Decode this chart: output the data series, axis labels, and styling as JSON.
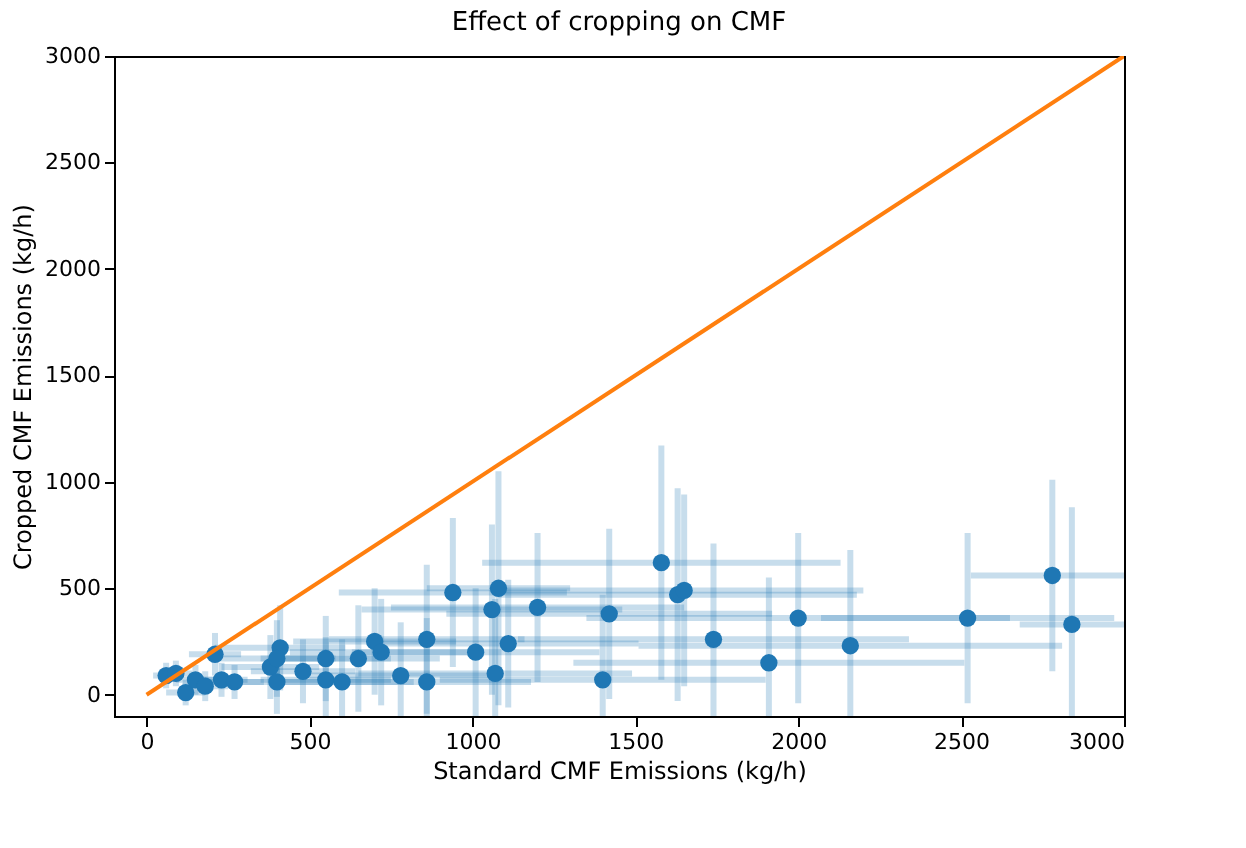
{
  "chart_data": {
    "type": "scatter",
    "title": "Effect of cropping on CMF",
    "xlabel": "Standard CMF Emissions (kg/h)",
    "ylabel": "Cropped CMF Emissions (kg/h)",
    "xlim": [
      -100,
      3000
    ],
    "ylim": [
      -100,
      3000
    ],
    "xticks": [
      0,
      500,
      1000,
      1500,
      2000,
      2500,
      3000
    ],
    "yticks": [
      0,
      500,
      1000,
      1500,
      2000,
      2500,
      3000
    ],
    "series": [
      {
        "color": "#1f77b4",
        "marker": "circle",
        "x": [
          60,
          90,
          120,
          150,
          180,
          210,
          230,
          270,
          380,
          400,
          410,
          400,
          480,
          550,
          550,
          600,
          650,
          700,
          720,
          780,
          860,
          860,
          940,
          1010,
          1080,
          1060,
          1110,
          1070,
          1200,
          1420,
          1400,
          1580,
          1630,
          1650,
          1740,
          1910,
          2000,
          2160,
          2520,
          2780,
          2840
        ],
        "values": [
          90,
          100,
          10,
          70,
          40,
          190,
          70,
          60,
          130,
          60,
          220,
          170,
          110,
          170,
          70,
          60,
          170,
          250,
          200,
          90,
          260,
          60,
          480,
          200,
          500,
          400,
          240,
          100,
          410,
          380,
          70,
          620,
          470,
          490,
          260,
          150,
          360,
          230,
          360,
          560,
          330
        ],
        "xerrors": [
          40,
          50,
          60,
          60,
          70,
          80,
          80,
          90,
          150,
          150,
          200,
          180,
          160,
          200,
          200,
          220,
          250,
          250,
          280,
          280,
          300,
          320,
          350,
          380,
          220,
          400,
          400,
          420,
          450,
          500,
          500,
          550,
          550,
          550,
          600,
          600,
          650,
          650,
          450,
          250,
          160
        ],
        "errors": [
          60,
          60,
          60,
          70,
          70,
          100,
          80,
          80,
          150,
          150,
          200,
          180,
          150,
          200,
          200,
          200,
          250,
          250,
          250,
          250,
          350,
          300,
          350,
          300,
          550,
          400,
          300,
          350,
          350,
          400,
          400,
          550,
          500,
          450,
          450,
          400,
          400,
          450,
          400,
          450,
          550
        ]
      },
      {
        "type": "line",
        "color": "#ff7f0e",
        "x": [
          0,
          3000
        ],
        "values": [
          0,
          3000
        ],
        "line_style": "solid"
      }
    ]
  }
}
